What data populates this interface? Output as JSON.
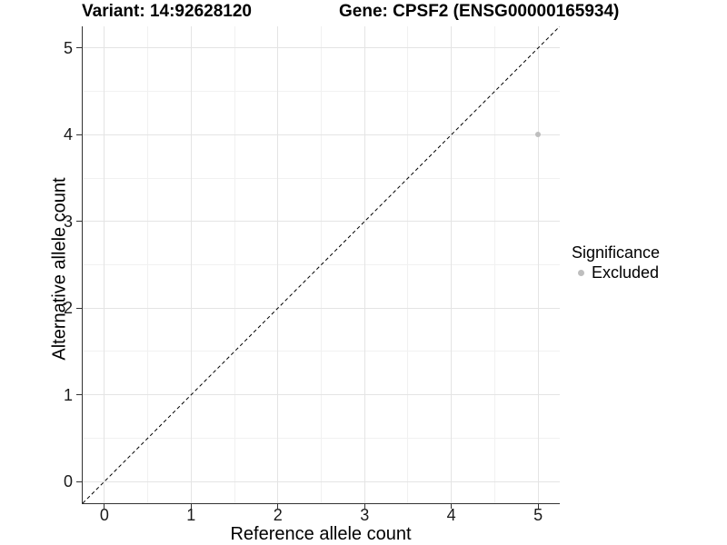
{
  "chart_data": {
    "type": "scatter",
    "title_left": "Variant: 14:92628120",
    "title_right": "Gene: CPSF2 (ENSG00000165934)",
    "xlabel": "Reference allele count",
    "ylabel": "Alternative allele count",
    "x_ticks": [
      0,
      1,
      2,
      3,
      4,
      5
    ],
    "y_ticks": [
      0,
      1,
      2,
      3,
      4,
      5
    ],
    "xlim": [
      -0.25,
      5.25
    ],
    "ylim": [
      -0.25,
      5.25
    ],
    "grid": "major+minor",
    "legend_position": "right",
    "points": [
      {
        "x": 5,
        "y": 4,
        "series": "Excluded"
      }
    ],
    "reference_line": {
      "type": "identity",
      "from": [
        -0.25,
        -0.25
      ],
      "to": [
        5.25,
        5.25
      ],
      "style": "dashed",
      "color": "#000000"
    },
    "legend": {
      "title": "Significance",
      "items": [
        {
          "label": "Excluded",
          "color": "#bebebe"
        }
      ]
    }
  },
  "colors": {
    "background": "#ffffff",
    "grid_major": "#e4e4e4",
    "grid_minor": "#f1f1f1",
    "axis_line": "#333333",
    "point": "#bebebe",
    "tick_text": "#1a1a1a",
    "title_text": "#000000"
  }
}
